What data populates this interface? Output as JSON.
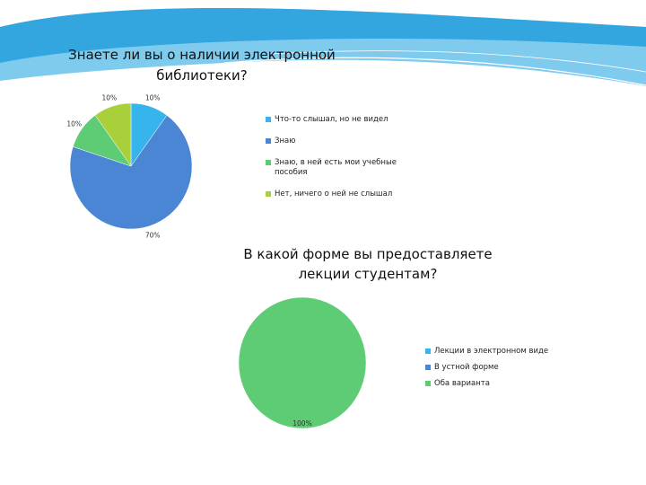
{
  "slide": {
    "colors": {
      "band_light": "#c9e9f7",
      "band_mid": "#7fcbee",
      "band_dark": "#33a6e0",
      "wave_line": "#ffffff"
    }
  },
  "chart_data": [
    {
      "type": "pie",
      "title": "Знаете ли вы о наличии электронной библиотеки?",
      "title_lines": [
        "Знаете ли вы о наличии электронной",
        "библиотеки?"
      ],
      "categories": [
        "Что-то слышал, но не видел",
        "Знаю",
        "Знаю, в ней есть мои учебные пособия",
        "Нет, ничего о ней не слышал"
      ],
      "legend_lines": [
        [
          "Что-то слышал, но не видел"
        ],
        [
          "Знаю"
        ],
        [
          "Знаю, в ней есть мои учебные",
          "пособия"
        ],
        [
          "Нет, ничего о ней не слышал"
        ]
      ],
      "values": [
        10,
        70,
        10,
        10
      ],
      "data_labels": [
        "10%",
        "70%",
        "10%",
        "10%"
      ],
      "colors": [
        "#35b5ec",
        "#4a86d4",
        "#5ecb75",
        "#a9cf3b"
      ],
      "legend_position": "right"
    },
    {
      "type": "pie",
      "title": "В какой форме вы предоставляете лекции студентам?",
      "title_lines": [
        "В какой форме вы предоставляете",
        "лекции студентам?"
      ],
      "categories": [
        "Лекции в электронном виде",
        "В устной форме",
        "Оба варианта"
      ],
      "legend_lines": [
        [
          "Лекции в электронном виде"
        ],
        [
          "В устной форме"
        ],
        [
          "Оба варианта"
        ]
      ],
      "values": [
        0,
        0,
        100
      ],
      "data_labels": [
        "",
        "",
        "100%"
      ],
      "colors": [
        "#35b5ec",
        "#4a86d4",
        "#5ecb75"
      ],
      "legend_position": "right"
    }
  ]
}
